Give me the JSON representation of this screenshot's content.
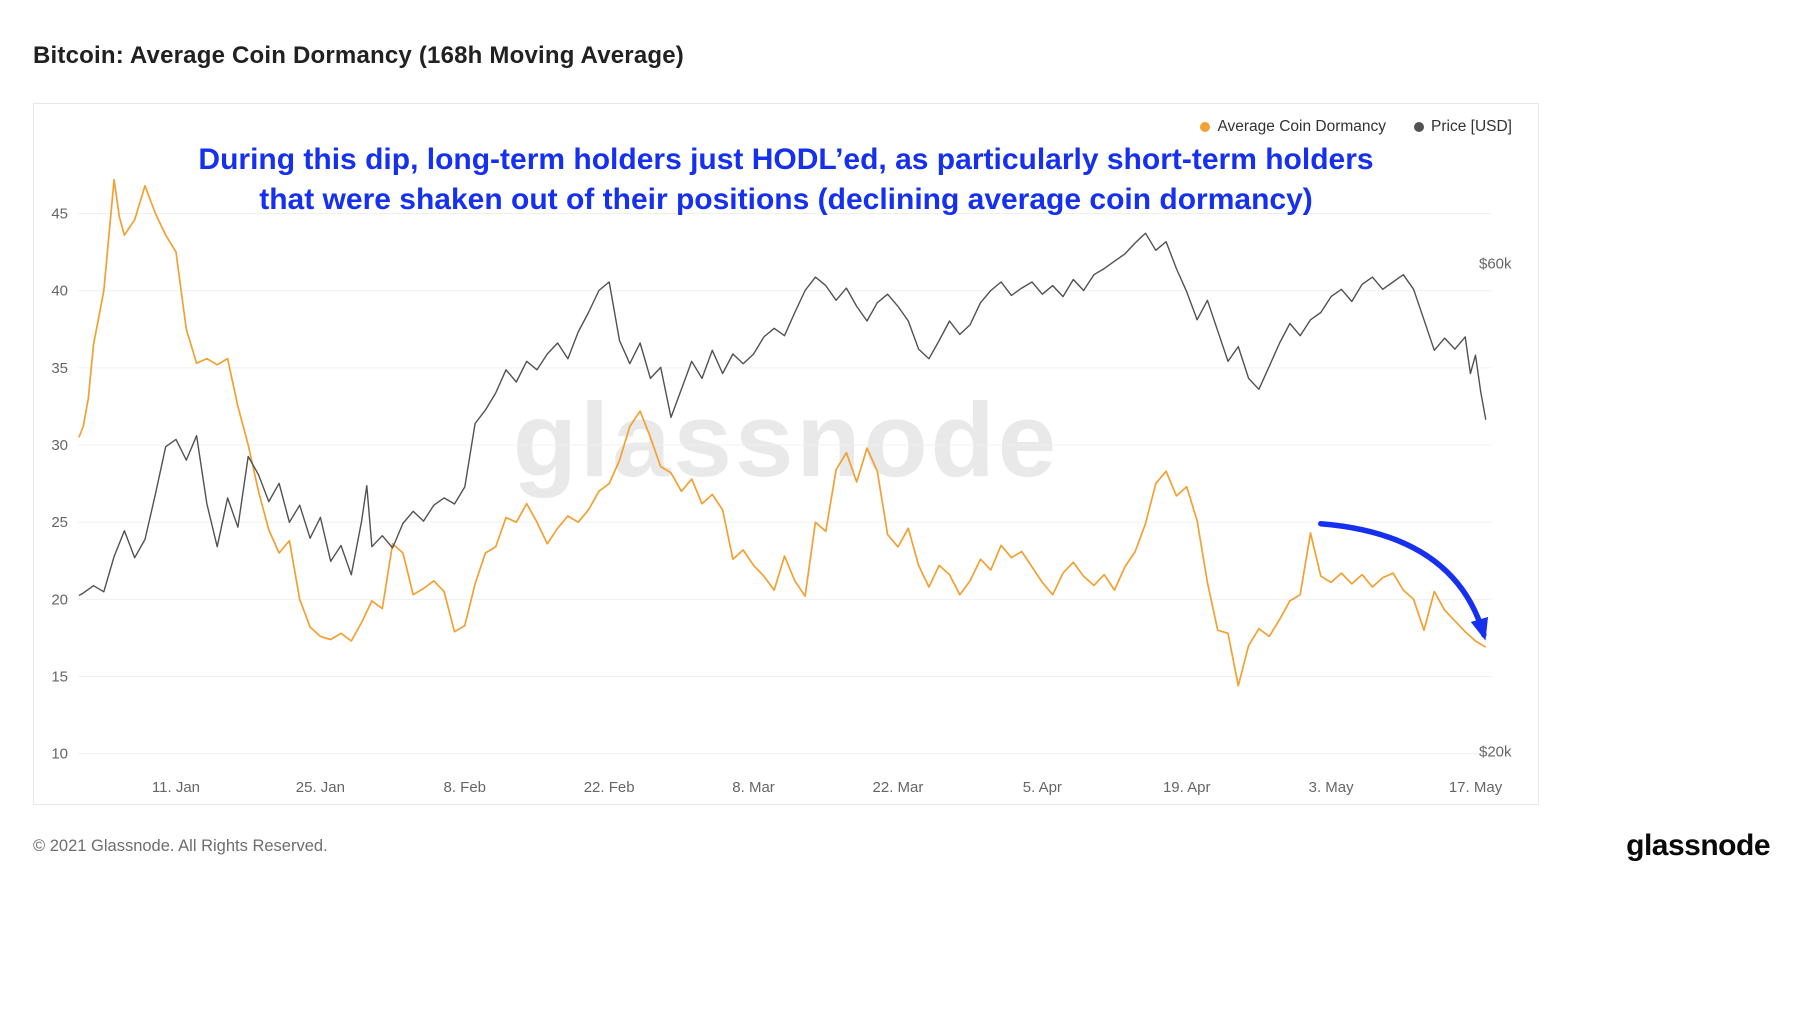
{
  "page": {
    "title": "Bitcoin: Average Coin Dormancy (168h Moving Average)",
    "watermark": "glassnode",
    "footer_copyright": "© 2021 Glassnode. All Rights Reserved.",
    "footer_brand": "glassnode"
  },
  "legend": [
    {
      "label": "Average Coin Dormancy",
      "color": "#f2a132"
    },
    {
      "label": "Price [USD]",
      "color": "#525252"
    }
  ],
  "annotation": {
    "line1": "During this dip, long-term holders just HODL’ed, as particularly short-term holders",
    "line2": "that were shaken out of their positions (declining average coin dormancy)",
    "color": "#1530ef"
  },
  "chart_data": {
    "type": "line",
    "title": "Bitcoin: Average Coin Dormancy (168h Moving Average)",
    "x_unit": "day index (0 = 2 Jan 2021)",
    "x_domain": [
      -0.5,
      136.5
    ],
    "x_ticks": [
      {
        "day": 9,
        "label": "11. Jan"
      },
      {
        "day": 23,
        "label": "25. Jan"
      },
      {
        "day": 37,
        "label": "8. Feb"
      },
      {
        "day": 51,
        "label": "22. Feb"
      },
      {
        "day": 65,
        "label": "8. Mar"
      },
      {
        "day": 79,
        "label": "22. Mar"
      },
      {
        "day": 93,
        "label": "5. Apr"
      },
      {
        "day": 107,
        "label": "19. Apr"
      },
      {
        "day": 121,
        "label": "3. May"
      },
      {
        "day": 135,
        "label": "17. May"
      }
    ],
    "left_axis": {
      "ticks": [
        10,
        15,
        20,
        25,
        30,
        35,
        40,
        45
      ],
      "range": [
        9.2,
        49.7
      ]
    },
    "right_axis": {
      "labels": [
        {
          "text": "$60k",
          "price_k": 60
        },
        {
          "text": "$20k",
          "price_k": 20
        }
      ],
      "anchors": [
        {
          "price_k": 20,
          "left_equiv": 10.13
        },
        {
          "price_k": 60,
          "left_equiv": 41.75
        }
      ]
    },
    "grid": "horizontal-only",
    "legend_position": "top-right",
    "series": [
      {
        "name": "Average Coin Dormancy",
        "axis": "left",
        "color": "#f2a132",
        "points": [
          [
            -0.4,
            30.5
          ],
          [
            0,
            31.2
          ],
          [
            0.5,
            33
          ],
          [
            1,
            36.5
          ],
          [
            2,
            40
          ],
          [
            3,
            47.2
          ],
          [
            3.5,
            44.8
          ],
          [
            4,
            43.6
          ],
          [
            5,
            44.6
          ],
          [
            6,
            46.8
          ],
          [
            7,
            45
          ],
          [
            8,
            43.6
          ],
          [
            9,
            42.5
          ],
          [
            10,
            37.5
          ],
          [
            11,
            35.3
          ],
          [
            12,
            35.6
          ],
          [
            13,
            35.2
          ],
          [
            14,
            35.6
          ],
          [
            15,
            32.5
          ],
          [
            16,
            30
          ],
          [
            17,
            27
          ],
          [
            18,
            24.5
          ],
          [
            19,
            23
          ],
          [
            20,
            23.8
          ],
          [
            21,
            20
          ],
          [
            22,
            18.2
          ],
          [
            23,
            17.6
          ],
          [
            24,
            17.4
          ],
          [
            25,
            17.8
          ],
          [
            26,
            17.3
          ],
          [
            27,
            18.5
          ],
          [
            28,
            19.9
          ],
          [
            29,
            19.4
          ],
          [
            30,
            23.6
          ],
          [
            31,
            23
          ],
          [
            32,
            20.3
          ],
          [
            33,
            20.7
          ],
          [
            34,
            21.2
          ],
          [
            35,
            20.5
          ],
          [
            36,
            17.9
          ],
          [
            37,
            18.3
          ],
          [
            38,
            21
          ],
          [
            39,
            23
          ],
          [
            40,
            23.4
          ],
          [
            41,
            25.3
          ],
          [
            42,
            25
          ],
          [
            43,
            26.2
          ],
          [
            44,
            25
          ],
          [
            45,
            23.6
          ],
          [
            46,
            24.6
          ],
          [
            47,
            25.4
          ],
          [
            48,
            25
          ],
          [
            49,
            25.8
          ],
          [
            50,
            27
          ],
          [
            51,
            27.5
          ],
          [
            52,
            29
          ],
          [
            53,
            31.2
          ],
          [
            54,
            32.2
          ],
          [
            55,
            30.5
          ],
          [
            56,
            28.6
          ],
          [
            57,
            28.2
          ],
          [
            58,
            27
          ],
          [
            59,
            27.8
          ],
          [
            60,
            26.2
          ],
          [
            61,
            26.8
          ],
          [
            62,
            25.8
          ],
          [
            63,
            22.6
          ],
          [
            64,
            23.2
          ],
          [
            65,
            22.2
          ],
          [
            66,
            21.5
          ],
          [
            67,
            20.6
          ],
          [
            68,
            22.8
          ],
          [
            69,
            21.2
          ],
          [
            70,
            20.2
          ],
          [
            71,
            25
          ],
          [
            72,
            24.4
          ],
          [
            73,
            28.4
          ],
          [
            74,
            29.5
          ],
          [
            75,
            27.6
          ],
          [
            76,
            29.8
          ],
          [
            77,
            28.3
          ],
          [
            78,
            24.2
          ],
          [
            79,
            23.4
          ],
          [
            80,
            24.6
          ],
          [
            81,
            22.2
          ],
          [
            82,
            20.8
          ],
          [
            83,
            22.2
          ],
          [
            84,
            21.6
          ],
          [
            85,
            20.3
          ],
          [
            86,
            21.2
          ],
          [
            87,
            22.6
          ],
          [
            88,
            21.9
          ],
          [
            89,
            23.5
          ],
          [
            90,
            22.7
          ],
          [
            91,
            23.1
          ],
          [
            92,
            22.1
          ],
          [
            93,
            21.1
          ],
          [
            94,
            20.3
          ],
          [
            95,
            21.7
          ],
          [
            96,
            22.4
          ],
          [
            97,
            21.5
          ],
          [
            98,
            20.9
          ],
          [
            99,
            21.6
          ],
          [
            100,
            20.6
          ],
          [
            101,
            22.1
          ],
          [
            102,
            23.1
          ],
          [
            103,
            24.9
          ],
          [
            104,
            27.5
          ],
          [
            105,
            28.3
          ],
          [
            106,
            26.7
          ],
          [
            107,
            27.3
          ],
          [
            108,
            25.1
          ],
          [
            109,
            21.1
          ],
          [
            110,
            18
          ],
          [
            111,
            17.8
          ],
          [
            112,
            14.4
          ],
          [
            113,
            17
          ],
          [
            114,
            18.1
          ],
          [
            115,
            17.6
          ],
          [
            116,
            18.7
          ],
          [
            117,
            19.9
          ],
          [
            118,
            20.3
          ],
          [
            119,
            24.3
          ],
          [
            120,
            21.5
          ],
          [
            121,
            21.1
          ],
          [
            122,
            21.7
          ],
          [
            123,
            21
          ],
          [
            124,
            21.6
          ],
          [
            125,
            20.8
          ],
          [
            126,
            21.4
          ],
          [
            127,
            21.7
          ],
          [
            128,
            20.6
          ],
          [
            129,
            20
          ],
          [
            130,
            18
          ],
          [
            131,
            20.5
          ],
          [
            132,
            19.3
          ],
          [
            133,
            18.6
          ],
          [
            134,
            17.9
          ],
          [
            135,
            17.3
          ],
          [
            136,
            16.9
          ]
        ]
      },
      {
        "name": "Price [USD]",
        "axis": "right",
        "unit": "USD thousands",
        "color": "#525252",
        "points": [
          [
            -0.4,
            32.8
          ],
          [
            0,
            33
          ],
          [
            1,
            33.6
          ],
          [
            2,
            33.1
          ],
          [
            3,
            36
          ],
          [
            4,
            38.1
          ],
          [
            5,
            35.9
          ],
          [
            6,
            37.4
          ],
          [
            7,
            41.1
          ],
          [
            8,
            45
          ],
          [
            9,
            45.6
          ],
          [
            10,
            43.9
          ],
          [
            11,
            45.9
          ],
          [
            12,
            40.3
          ],
          [
            13,
            36.8
          ],
          [
            14,
            40.8
          ],
          [
            15,
            38.4
          ],
          [
            16,
            44.2
          ],
          [
            17,
            42.7
          ],
          [
            18,
            40.5
          ],
          [
            19,
            42
          ],
          [
            20,
            38.8
          ],
          [
            21,
            40.2
          ],
          [
            22,
            37.5
          ],
          [
            23,
            39.2
          ],
          [
            24,
            35.6
          ],
          [
            25,
            36.9
          ],
          [
            26,
            34.5
          ],
          [
            27,
            38.9
          ],
          [
            27.5,
            41.8
          ],
          [
            28,
            36.8
          ],
          [
            29,
            37.7
          ],
          [
            30,
            36.7
          ],
          [
            31,
            38.7
          ],
          [
            32,
            39.7
          ],
          [
            33,
            38.9
          ],
          [
            34,
            40.2
          ],
          [
            35,
            40.8
          ],
          [
            36,
            40.3
          ],
          [
            37,
            41.7
          ],
          [
            38,
            46.9
          ],
          [
            39,
            48
          ],
          [
            40,
            49.4
          ],
          [
            41,
            51.3
          ],
          [
            42,
            50.3
          ],
          [
            43,
            52
          ],
          [
            44,
            51.3
          ],
          [
            45,
            52.6
          ],
          [
            46,
            53.5
          ],
          [
            47,
            52.2
          ],
          [
            48,
            54.4
          ],
          [
            49,
            56
          ],
          [
            50,
            57.8
          ],
          [
            51,
            58.5
          ],
          [
            52,
            53.7
          ],
          [
            53,
            51.8
          ],
          [
            54,
            53.5
          ],
          [
            55,
            50.6
          ],
          [
            56,
            51.5
          ],
          [
            57,
            47.4
          ],
          [
            58,
            49.7
          ],
          [
            59,
            52
          ],
          [
            60,
            50.6
          ],
          [
            61,
            52.9
          ],
          [
            62,
            51
          ],
          [
            63,
            52.6
          ],
          [
            64,
            51.8
          ],
          [
            65,
            52.6
          ],
          [
            66,
            54
          ],
          [
            67,
            54.7
          ],
          [
            68,
            54.1
          ],
          [
            69,
            56
          ],
          [
            70,
            57.8
          ],
          [
            71,
            58.9
          ],
          [
            72,
            58.2
          ],
          [
            73,
            57
          ],
          [
            74,
            58
          ],
          [
            75,
            56.5
          ],
          [
            76,
            55.3
          ],
          [
            77,
            56.8
          ],
          [
            78,
            57.5
          ],
          [
            79,
            56.5
          ],
          [
            80,
            55.3
          ],
          [
            81,
            53
          ],
          [
            82,
            52.2
          ],
          [
            83,
            53.7
          ],
          [
            84,
            55.3
          ],
          [
            85,
            54.2
          ],
          [
            86,
            55
          ],
          [
            87,
            56.8
          ],
          [
            88,
            57.8
          ],
          [
            89,
            58.5
          ],
          [
            90,
            57.4
          ],
          [
            91,
            58
          ],
          [
            92,
            58.5
          ],
          [
            93,
            57.5
          ],
          [
            94,
            58.2
          ],
          [
            95,
            57.3
          ],
          [
            96,
            58.7
          ],
          [
            97,
            57.8
          ],
          [
            98,
            59.1
          ],
          [
            99,
            59.6
          ],
          [
            100,
            60.2
          ],
          [
            101,
            60.8
          ],
          [
            102,
            61.7
          ],
          [
            103,
            62.5
          ],
          [
            104,
            61.1
          ],
          [
            105,
            61.8
          ],
          [
            106,
            59.6
          ],
          [
            107,
            57.7
          ],
          [
            108,
            55.4
          ],
          [
            109,
            57
          ],
          [
            110,
            54.5
          ],
          [
            111,
            52
          ],
          [
            112,
            53.2
          ],
          [
            113,
            50.6
          ],
          [
            114,
            49.7
          ],
          [
            115,
            51.6
          ],
          [
            116,
            53.5
          ],
          [
            117,
            55.1
          ],
          [
            118,
            54.1
          ],
          [
            119,
            55.4
          ],
          [
            120,
            56
          ],
          [
            121,
            57.3
          ],
          [
            122,
            57.9
          ],
          [
            123,
            56.9
          ],
          [
            124,
            58.3
          ],
          [
            125,
            58.9
          ],
          [
            126,
            57.9
          ],
          [
            127,
            58.5
          ],
          [
            128,
            59.1
          ],
          [
            129,
            57.9
          ],
          [
            130,
            55.4
          ],
          [
            131,
            52.9
          ],
          [
            132,
            53.9
          ],
          [
            133,
            53
          ],
          [
            134,
            54
          ],
          [
            134.5,
            51
          ],
          [
            135,
            52.5
          ],
          [
            135.5,
            49.5
          ],
          [
            136,
            47.2
          ]
        ]
      }
    ],
    "annotation_arrow": {
      "from": [
        120,
        24.9
      ],
      "control": [
        133,
        24.2
      ],
      "to": [
        135.8,
        17.7
      ],
      "color": "#1530ef"
    }
  }
}
